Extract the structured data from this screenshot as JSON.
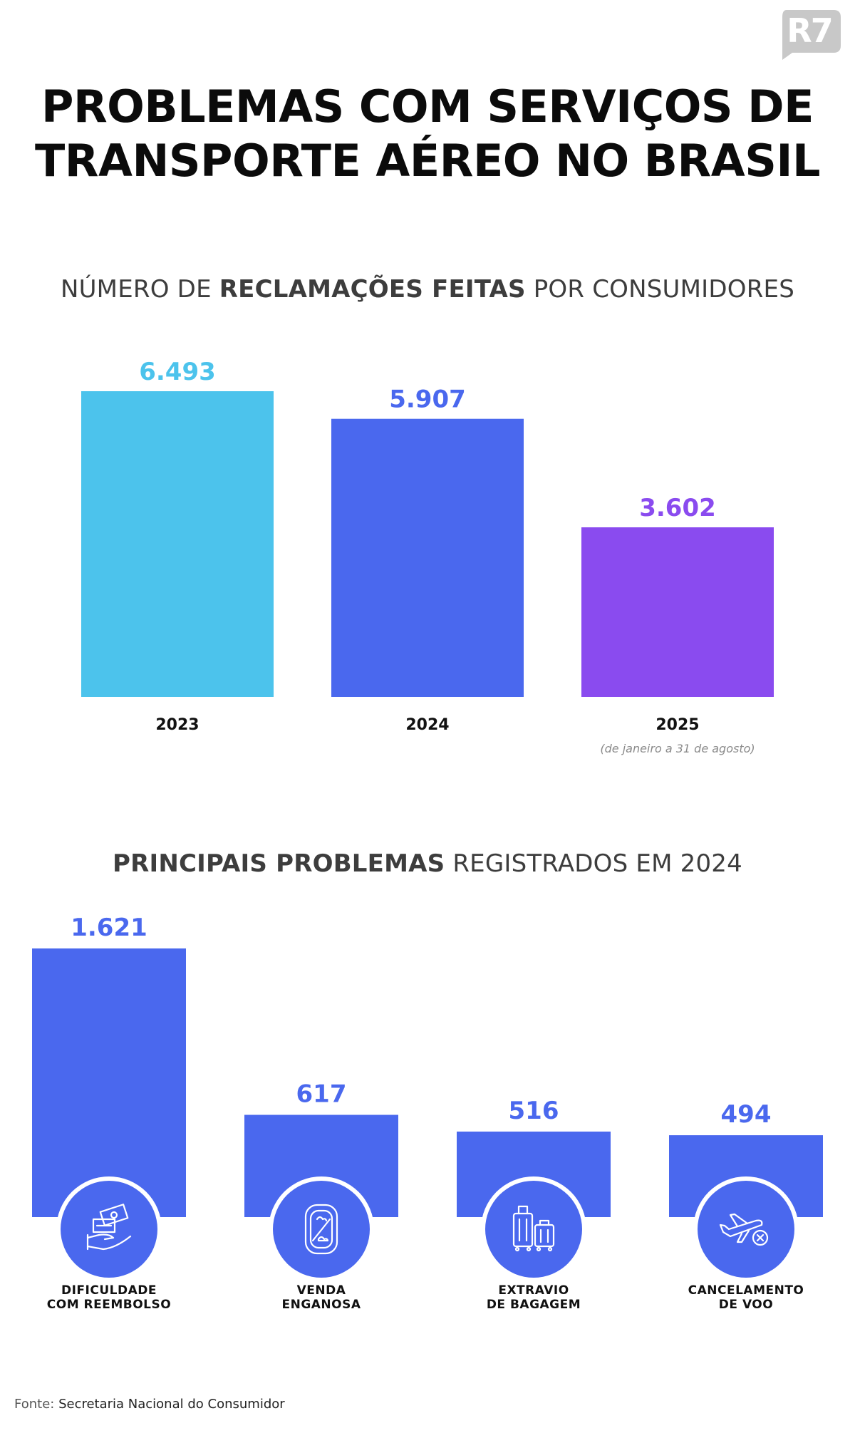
{
  "logo": {
    "text": "R7",
    "color": "#c8c8c8"
  },
  "title": {
    "line1": "PROBLEMAS COM SERVIÇOS DE",
    "line2": "TRANSPORTE AÉREO NO BRASIL"
  },
  "chart_data": [
    {
      "type": "bar",
      "title_prefix": "NÚMERO DE ",
      "title_bold": "RECLAMAÇÕES FEITAS",
      "title_suffix": " POR CONSUMIDORES",
      "categories": [
        "2023",
        "2024",
        "2025"
      ],
      "values": [
        6493,
        5907,
        3602
      ],
      "value_labels": [
        "6.493",
        "5.907",
        "3.602"
      ],
      "colors": [
        "#4cc3ec",
        "#4a68ee",
        "#8a4bef"
      ],
      "notes": [
        "",
        "",
        "(de janeiro a 31 de agosto)"
      ],
      "ylim": [
        0,
        6493
      ],
      "grid": false
    },
    {
      "type": "bar",
      "title_bold": "PRINCIPAIS PROBLEMAS",
      "title_suffix": " REGISTRADOS EM 2024",
      "categories": [
        [
          "DIFICULDADE",
          "COM REEMBOLSO"
        ],
        [
          "VENDA",
          "ENGANOSA"
        ],
        [
          "EXTRAVIO",
          "DE BAGAGEM"
        ],
        [
          "CANCELAMENTO",
          "DE VOO"
        ]
      ],
      "values": [
        1621,
        617,
        516,
        494
      ],
      "value_labels": [
        "1.621",
        "617",
        "516",
        "494"
      ],
      "icons": [
        "money-hand-icon",
        "airplane-window-icon",
        "luggage-icon",
        "plane-cancel-icon"
      ],
      "color": "#4a68ee",
      "ylim": [
        0,
        1621
      ],
      "grid": false
    }
  ],
  "source": {
    "prefix": "Fonte: ",
    "name": "Secretaria Nacional do Consumidor"
  }
}
